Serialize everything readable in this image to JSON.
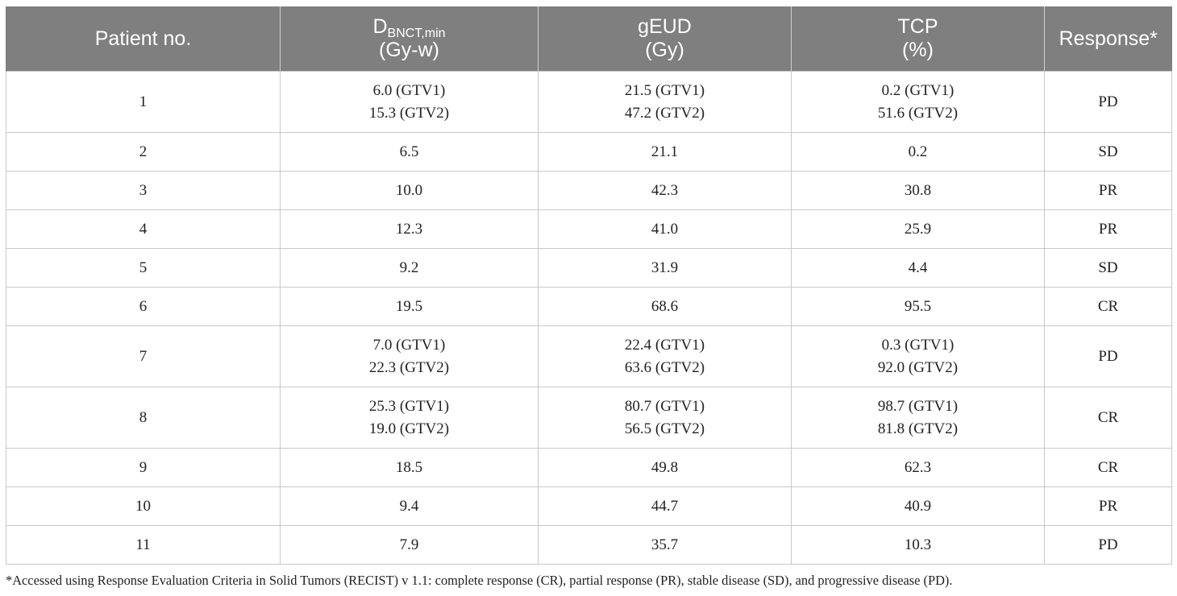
{
  "table": {
    "headers": [
      {
        "main": "Patient no.",
        "sub": "",
        "unit": ""
      },
      {
        "main": "D",
        "sub": "BNCT,min",
        "unit": "(Gy-w)"
      },
      {
        "main": "gEUD",
        "sub": "",
        "unit": "(Gy)"
      },
      {
        "main": "TCP",
        "sub": "",
        "unit": "(%)"
      },
      {
        "main": "Response*",
        "sub": "",
        "unit": ""
      }
    ],
    "rows": [
      {
        "patient": "1",
        "dmin": [
          "6.0 (GTV1)",
          "15.3 (GTV2)"
        ],
        "geud": [
          "21.5 (GTV1)",
          "47.2 (GTV2)"
        ],
        "tcp": [
          "0.2 (GTV1)",
          "51.6 (GTV2)"
        ],
        "response": "PD"
      },
      {
        "patient": "2",
        "dmin": [
          "6.5"
        ],
        "geud": [
          "21.1"
        ],
        "tcp": [
          "0.2"
        ],
        "response": "SD"
      },
      {
        "patient": "3",
        "dmin": [
          "10.0"
        ],
        "geud": [
          "42.3"
        ],
        "tcp": [
          "30.8"
        ],
        "response": "PR"
      },
      {
        "patient": "4",
        "dmin": [
          "12.3"
        ],
        "geud": [
          "41.0"
        ],
        "tcp": [
          "25.9"
        ],
        "response": "PR"
      },
      {
        "patient": "5",
        "dmin": [
          "9.2"
        ],
        "geud": [
          "31.9"
        ],
        "tcp": [
          "4.4"
        ],
        "response": "SD"
      },
      {
        "patient": "6",
        "dmin": [
          "19.5"
        ],
        "geud": [
          "68.6"
        ],
        "tcp": [
          "95.5"
        ],
        "response": "CR"
      },
      {
        "patient": "7",
        "dmin": [
          "7.0 (GTV1)",
          "22.3 (GTV2)"
        ],
        "geud": [
          "22.4 (GTV1)",
          "63.6 (GTV2)"
        ],
        "tcp": [
          "0.3 (GTV1)",
          "92.0 (GTV2)"
        ],
        "response": "PD"
      },
      {
        "patient": "8",
        "dmin": [
          "25.3 (GTV1)",
          "19.0 (GTV2)"
        ],
        "geud": [
          "80.7 (GTV1)",
          "56.5 (GTV2)"
        ],
        "tcp": [
          "98.7 (GTV1)",
          "81.8 (GTV2)"
        ],
        "response": "CR"
      },
      {
        "patient": "9",
        "dmin": [
          "18.5"
        ],
        "geud": [
          "49.8"
        ],
        "tcp": [
          "62.3"
        ],
        "response": "CR"
      },
      {
        "patient": "10",
        "dmin": [
          "9.4"
        ],
        "geud": [
          "44.7"
        ],
        "tcp": [
          "40.9"
        ],
        "response": "PR"
      },
      {
        "patient": "11",
        "dmin": [
          "7.9"
        ],
        "geud": [
          "35.7"
        ],
        "tcp": [
          "10.3"
        ],
        "response": "PD"
      }
    ]
  },
  "footnote": "*Accessed using Response Evaluation Criteria in Solid Tumors (RECIST) v 1.1: complete response (CR), partial response (PR), stable disease (SD), and progressive disease (PD)."
}
